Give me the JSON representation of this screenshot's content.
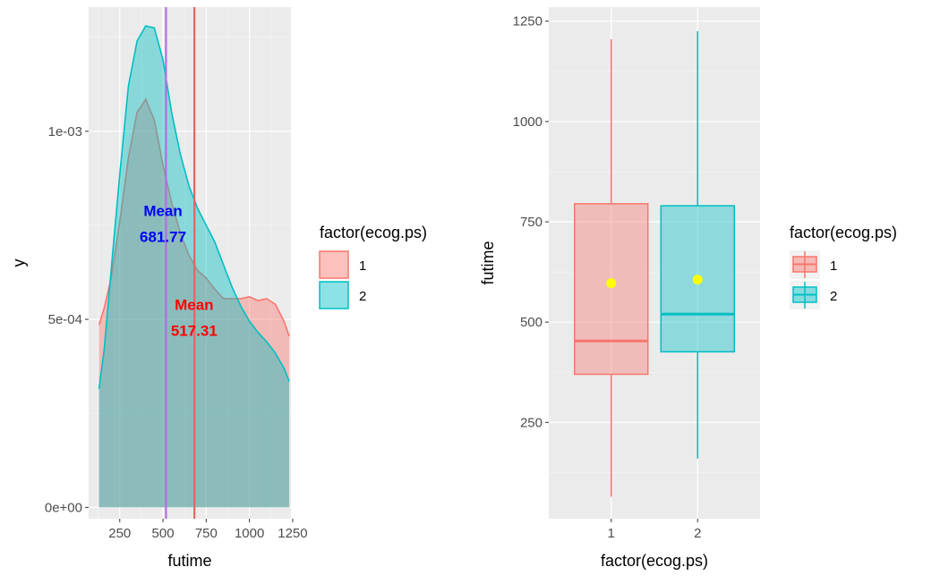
{
  "colors": {
    "group1": "#F8766D",
    "group2": "#00BFC4",
    "panel_bg": "#EBEBEB",
    "grid": "#FFFFFF",
    "mean_line_purple": "#B070E0",
    "mean_line_red": "#E8635C",
    "mean_point": "#FFFF00",
    "annot_blue": "#0000FF",
    "annot_red": "#FF0000"
  },
  "chart_data": [
    {
      "type": "area",
      "xlabel": "futime",
      "ylabel": "y",
      "xlim": [
        70,
        1240
      ],
      "ylim": [
        -3e-05,
        0.00133
      ],
      "x_ticks": [
        250,
        500,
        750,
        1000,
        1250
      ],
      "x_tick_labels": [
        "250",
        "500",
        "750",
        "1000",
        "1250"
      ],
      "y_ticks": [
        0,
        0.0005,
        0.001
      ],
      "y_tick_labels": [
        "0e+00",
        "5e-04",
        "1e-03"
      ],
      "grid": true,
      "legend": {
        "title": "factor(ecog.ps)",
        "position": "right",
        "entries": [
          "1",
          "2"
        ]
      },
      "series": [
        {
          "name": "1",
          "x": [
            130,
            160,
            200,
            250,
            300,
            350,
            400,
            450,
            500,
            550,
            600,
            650,
            700,
            750,
            800,
            850,
            900,
            950,
            1000,
            1050,
            1100,
            1150,
            1200,
            1230
          ],
          "y": [
            0.000485,
            0.00053,
            0.00061,
            0.00076,
            0.00093,
            0.00105,
            0.001085,
            0.00103,
            0.00091,
            0.00081,
            0.00073,
            0.00067,
            0.00063,
            0.00061,
            0.00058,
            0.000555,
            0.000555,
            0.000555,
            0.00056,
            0.00055,
            0.000555,
            0.00054,
            0.000495,
            0.000455
          ]
        },
        {
          "name": "2",
          "x": [
            130,
            160,
            200,
            250,
            300,
            350,
            400,
            450,
            500,
            550,
            600,
            650,
            700,
            750,
            800,
            850,
            900,
            950,
            1000,
            1050,
            1100,
            1150,
            1200,
            1230
          ],
          "y": [
            0.000315,
            0.00042,
            0.00063,
            0.000885,
            0.00112,
            0.00124,
            0.00128,
            0.001275,
            0.00119,
            0.00105,
            0.00094,
            0.000855,
            0.000795,
            0.00075,
            0.000705,
            0.000645,
            0.000585,
            0.000535,
            0.000495,
            0.000465,
            0.00044,
            0.00041,
            0.00037,
            0.000335
          ]
        }
      ],
      "vlines": [
        {
          "x": 517.31,
          "color": "#B070E0"
        },
        {
          "x": 681.77,
          "color": "#E8635C"
        }
      ],
      "annotations": [
        {
          "lines": [
            "Mean",
            "681.77"
          ],
          "x": 500,
          "y": 0.000775,
          "color": "#0000FF"
        },
        {
          "lines": [
            "Mean",
            "517.31"
          ],
          "x": 680,
          "y": 0.000525,
          "color": "#FF0000"
        }
      ]
    },
    {
      "type": "box",
      "xlabel": "factor(ecog.ps)",
      "ylabel": "futime",
      "categories": [
        "1",
        "2"
      ],
      "ylim": [
        10,
        1285
      ],
      "y_ticks": [
        250,
        500,
        750,
        1000,
        1250
      ],
      "y_tick_labels": [
        "250",
        "500",
        "750",
        "1000",
        "1250"
      ],
      "grid": true,
      "legend": {
        "title": "factor(ecog.ps)",
        "position": "right",
        "entries": [
          "1",
          "2"
        ]
      },
      "boxes": [
        {
          "name": "1",
          "min": 65,
          "q1": 370,
          "median": 453,
          "q3": 795,
          "max": 1205,
          "mean": 597
        },
        {
          "name": "2",
          "min": 160,
          "q1": 426,
          "median": 520,
          "q3": 790,
          "max": 1225,
          "mean": 606
        }
      ]
    }
  ]
}
